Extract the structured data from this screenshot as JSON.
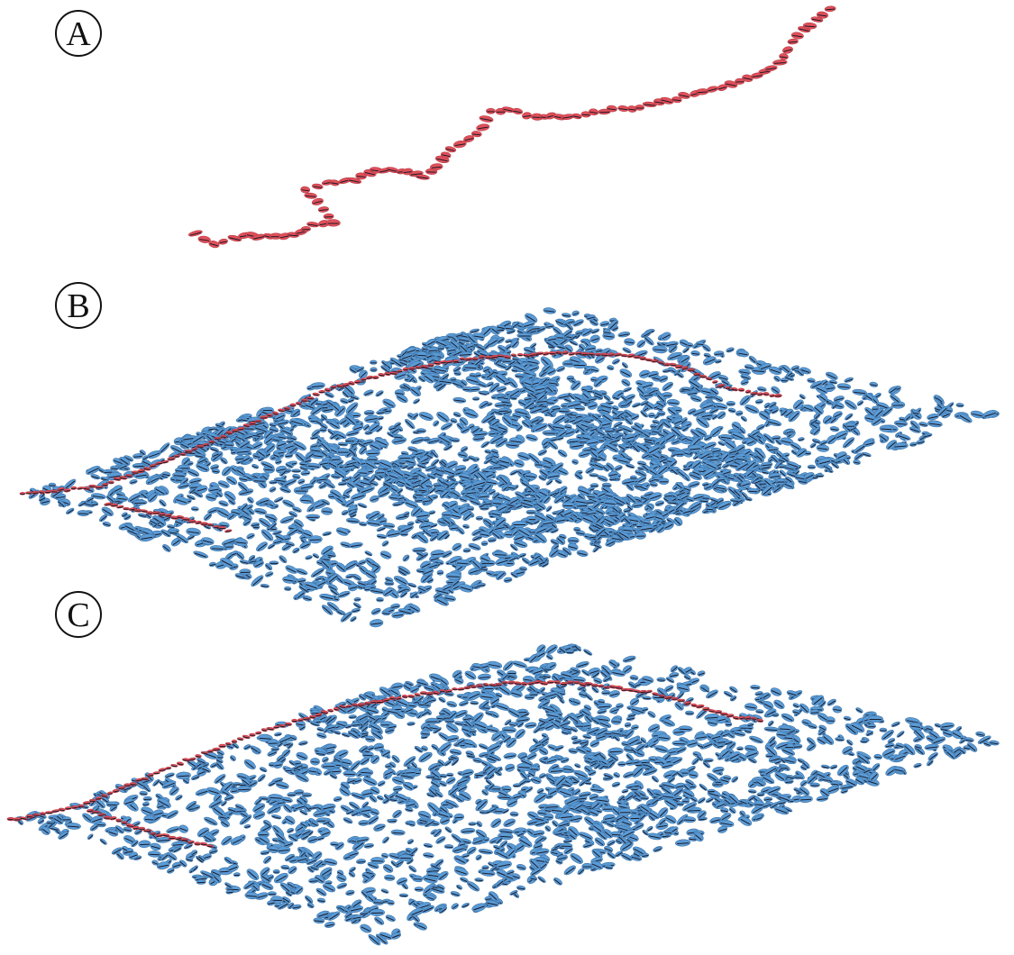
{
  "figure": {
    "panels": [
      {
        "label": "A",
        "content": "red-ellipsoid-chain"
      },
      {
        "label": "B",
        "content": "dense-blue-ellipsoid-surface-with-red-ridge"
      },
      {
        "label": "C",
        "content": "sparse-blue-ellipsoid-surface-with-red-ridge"
      }
    ]
  },
  "colors": {
    "red_glyph": "#e0505a",
    "red_glyph_dark": "#b83a44",
    "blue_glyph": "#5b9bd5",
    "blue_glyph_dark": "#3d74a8",
    "needle": "#1a1a2a",
    "label_stroke": "#111111"
  }
}
